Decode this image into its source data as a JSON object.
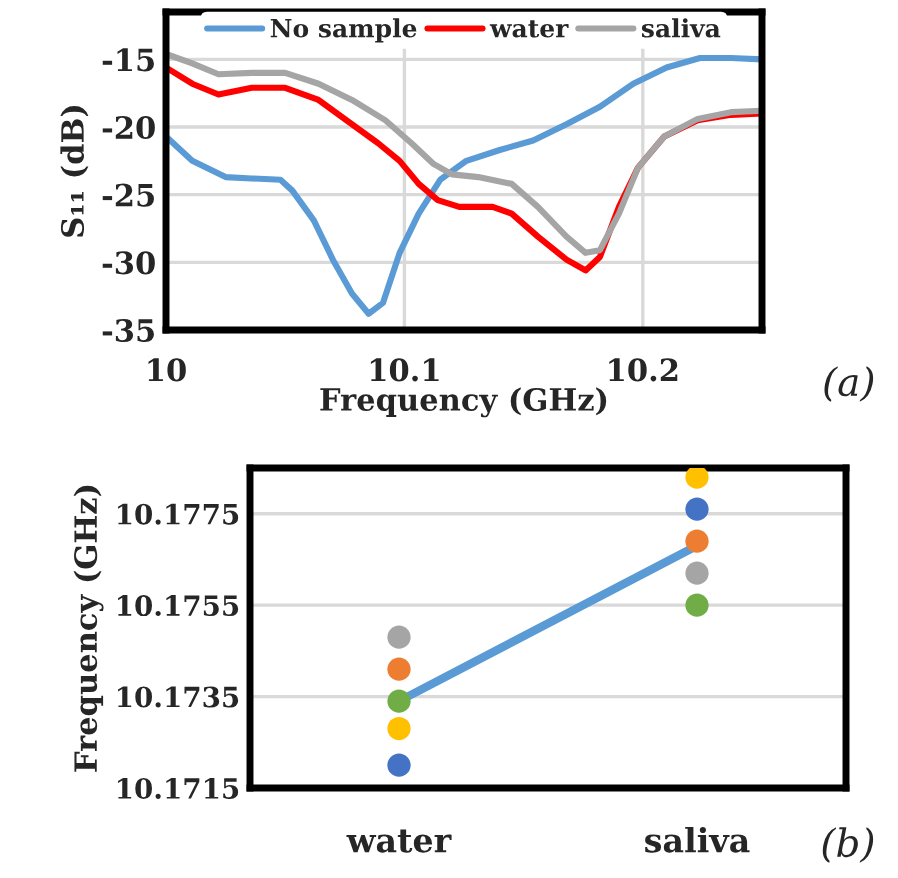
{
  "chart_data": [
    {
      "type": "line",
      "xlabel": "Frequency (GHz)",
      "ylabel": "S₁₁ (dB)",
      "xlim": [
        10,
        10.25
      ],
      "xticks": [
        10,
        10.1,
        10.2
      ],
      "ylim": [
        -35,
        -11.5
      ],
      "yticks": [
        -35,
        -30,
        -25,
        -20,
        -15
      ],
      "grid": true,
      "legend": "top",
      "line_style": "solid",
      "annotations": [
        "(a)"
      ],
      "series": [
        {
          "name": "No sample",
          "color": "#5b9bd5",
          "x": [
            10,
            10.011,
            10.025,
            10.036,
            10.048,
            10.053,
            10.062,
            10.07,
            10.078,
            10.085,
            10.091,
            10.098,
            10.106,
            10.115,
            10.126,
            10.14,
            10.154,
            10.168,
            10.182,
            10.196,
            10.21,
            10.224,
            10.237,
            10.25
          ],
          "values": [
            -20.7,
            -22.5,
            -23.7,
            -23.8,
            -23.9,
            -24.7,
            -26.9,
            -29.8,
            -32.3,
            -33.8,
            -33.0,
            -29.3,
            -26.4,
            -23.9,
            -22.5,
            -21.7,
            -21.0,
            -19.8,
            -18.5,
            -16.8,
            -15.6,
            -14.9,
            -14.9,
            -15.0
          ]
        },
        {
          "name": "water",
          "color": "#ff0000",
          "x": [
            10,
            10.011,
            10.022,
            10.036,
            10.05,
            10.064,
            10.078,
            10.089,
            10.098,
            10.106,
            10.114,
            10.123,
            10.137,
            10.145,
            10.156,
            10.168,
            10.176,
            10.182,
            10.19,
            10.198,
            10.209,
            10.223,
            10.237,
            10.25
          ],
          "values": [
            -15.6,
            -16.8,
            -17.6,
            -17.1,
            -17.1,
            -18.0,
            -19.8,
            -21.2,
            -22.5,
            -24.2,
            -25.4,
            -25.9,
            -25.9,
            -26.4,
            -28.1,
            -29.8,
            -30.6,
            -29.6,
            -25.9,
            -23.0,
            -20.7,
            -19.5,
            -19.1,
            -19.0
          ]
        },
        {
          "name": "saliva",
          "color": "#a5a5a5",
          "x": [
            10,
            10.011,
            10.022,
            10.036,
            10.05,
            10.064,
            10.078,
            10.092,
            10.103,
            10.112,
            10.12,
            10.131,
            10.145,
            10.156,
            10.168,
            10.176,
            10.182,
            10.19,
            10.198,
            10.209,
            10.223,
            10.237,
            10.25
          ],
          "values": [
            -14.6,
            -15.3,
            -16.1,
            -16.0,
            -16.0,
            -16.8,
            -18.0,
            -19.5,
            -21.2,
            -22.7,
            -23.5,
            -23.7,
            -24.2,
            -25.9,
            -28.1,
            -29.3,
            -29.1,
            -26.4,
            -23.0,
            -20.7,
            -19.4,
            -18.9,
            -18.8
          ]
        }
      ]
    },
    {
      "type": "scatter",
      "ylabel": "Frequency (GHz)",
      "categories": [
        "water",
        "saliva"
      ],
      "ylim": [
        10.1715,
        10.1785
      ],
      "yticks": [
        10.1715,
        10.1735,
        10.1755,
        10.1775
      ],
      "grid": "y",
      "marker": "circle",
      "annotations": [
        "(b)"
      ],
      "series": [
        {
          "type": "line",
          "marker": "none",
          "color": "#5b9bd5",
          "values": [
            10.1734,
            10.1768
          ]
        },
        {
          "color": "#a5a5a5",
          "values": [
            10.1748,
            10.1762
          ]
        },
        {
          "color": "#ed7d31",
          "values": [
            10.1741,
            10.1769
          ]
        },
        {
          "color": "#70ad47",
          "values": [
            10.1734,
            10.1755
          ]
        },
        {
          "color": "#ffc000",
          "values": [
            10.1728,
            10.1783
          ]
        },
        {
          "color": "#4472c4",
          "values": [
            10.172,
            10.1776
          ]
        }
      ]
    }
  ]
}
